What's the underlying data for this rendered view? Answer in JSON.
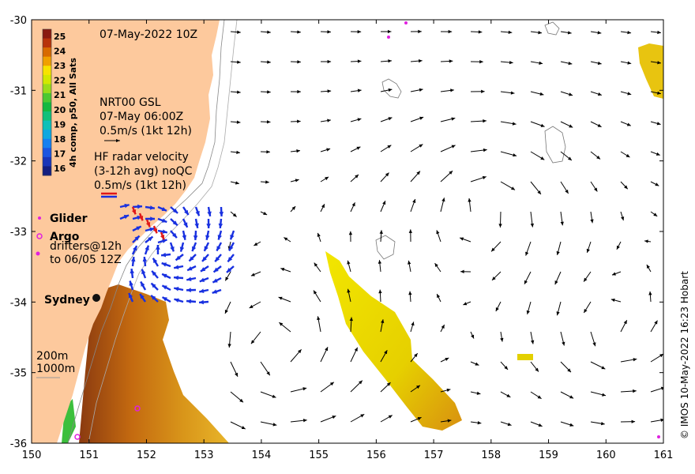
{
  "date_label": "07-May-2022 10Z",
  "colorbar": {
    "label": "4h comp, p50, All Sats",
    "ticks": [
      "25",
      "24",
      "23",
      "22",
      "21",
      "20",
      "19",
      "18",
      "17",
      "16"
    ],
    "colors": [
      "#8a1a10",
      "#b8320a",
      "#d86a00",
      "#f0a000",
      "#f7e300",
      "#d2e800",
      "#9adc1a",
      "#4cc832",
      "#14b840",
      "#12c07a",
      "#10c0b8",
      "#10a8e0",
      "#1680f0",
      "#1c55e0",
      "#1a35b8",
      "#141e80"
    ]
  },
  "gsl_legend": {
    "line1": "NRT00 GSL",
    "line2": "07-May 06:00Z",
    "line3": "0.5m/s (1kt 12h)"
  },
  "hf_legend": {
    "line1": "HF radar velocity",
    "line2": "(3-12h avg) noQC",
    "line3": "0.5m/s (1kt 12h)"
  },
  "markers": {
    "glider": "Glider",
    "argo": "Argo",
    "drifters_line1": "drifters@12h",
    "drifters_line2": "to 06/05 12Z"
  },
  "city": "Sydney",
  "contours": {
    "c200": "200m",
    "c1000": "1000m"
  },
  "credit": "© IMOS 10-May-2022 16:23 Hobart",
  "x_ticks": [
    "150",
    "151",
    "152",
    "153",
    "154",
    "155",
    "156",
    "157",
    "158",
    "159",
    "160",
    "161"
  ],
  "y_ticks": [
    "-30",
    "-31",
    "-32",
    "-33",
    "-34",
    "-35",
    "-36"
  ],
  "colors": {
    "land": "#fdc99d",
    "ocean": "#ffffff",
    "gsl_arrow": "#000000",
    "hf_arrow": "#1830e0",
    "hf_red": "#e01818",
    "glider": "#e020e0"
  }
}
